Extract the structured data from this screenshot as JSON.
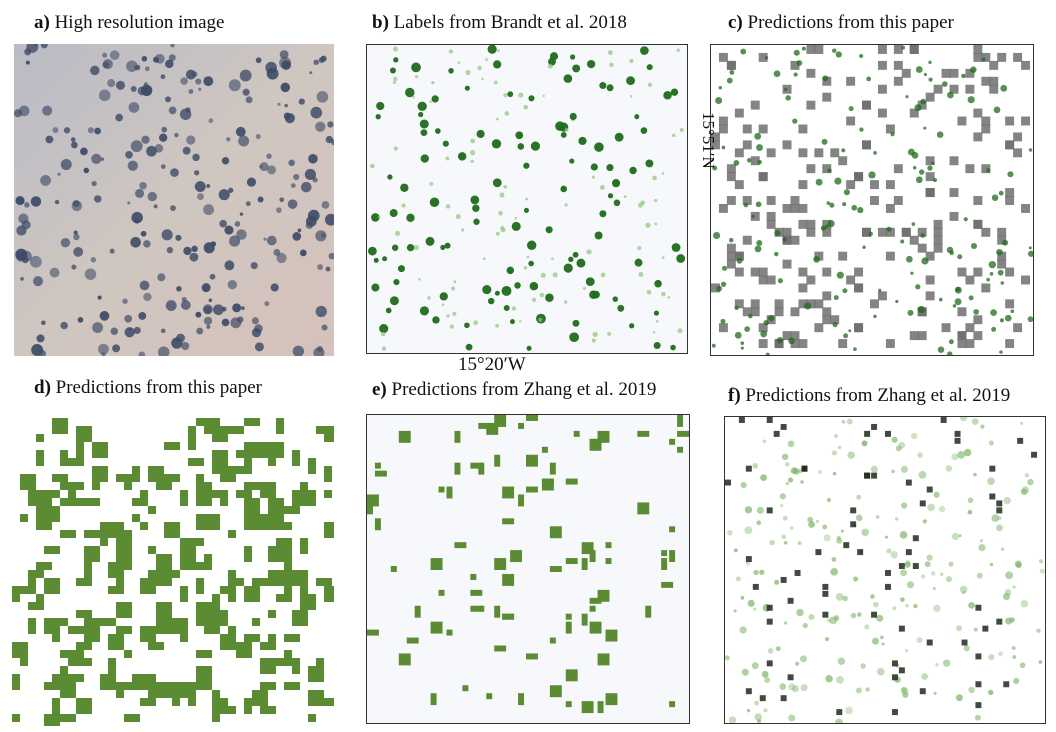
{
  "panels": [
    {
      "letter": "a)",
      "title": "High resolution image"
    },
    {
      "letter": "b)",
      "title": "Labels from Brandt et al. 2018"
    },
    {
      "letter": "c)",
      "title": "Predictions from this paper"
    },
    {
      "letter": "d)",
      "title": "Predictions from this paper"
    },
    {
      "letter": "e)",
      "title": "Predictions from Zhang et al. 2019"
    },
    {
      "letter": "f)",
      "title": "Predictions from Zhang et al. 2019"
    }
  ],
  "axis_labels": {
    "longitude": "15°20′W",
    "latitude": "15°51′N"
  },
  "colors": {
    "label_green": "#1f6b1a",
    "prediction_green": "#5b8c33",
    "prediction_gray": "#6e6e6e",
    "aerial_background": "#c9c2bd",
    "aerial_tree": "#3d4a66"
  }
}
